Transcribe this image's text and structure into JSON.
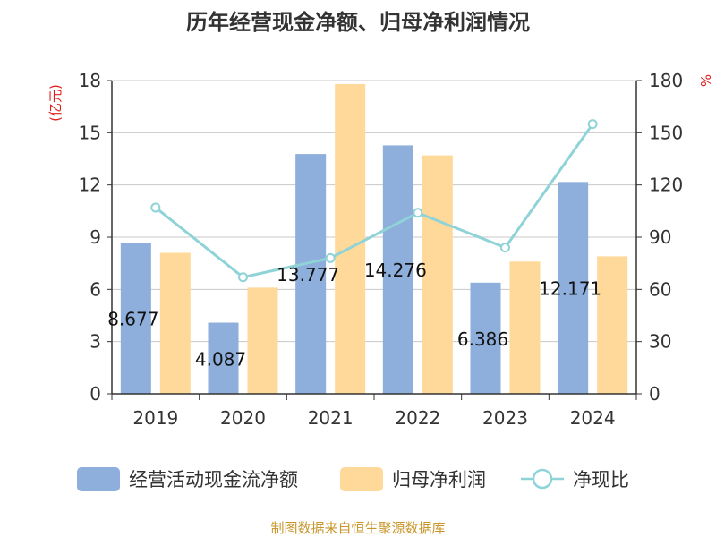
{
  "chart_data": {
    "type": "bar",
    "title": "历年经营现金净额、归母净利润情况",
    "categories": [
      "2019",
      "2020",
      "2021",
      "2022",
      "2023",
      "2024"
    ],
    "series": [
      {
        "name": "经营活动现金流净额",
        "type": "bar",
        "axis": "left",
        "color": "#8eaedb",
        "values": [
          8.677,
          4.087,
          13.777,
          14.276,
          6.386,
          12.171
        ]
      },
      {
        "name": "归母净利润",
        "type": "bar",
        "axis": "left",
        "color": "#ffd99a",
        "values": [
          8.1,
          6.1,
          17.8,
          13.7,
          7.6,
          7.9
        ]
      },
      {
        "name": "净现比",
        "type": "line",
        "axis": "right",
        "color": "#8fd3d8",
        "values": [
          107,
          67,
          78,
          104,
          84,
          155
        ]
      }
    ],
    "data_labels": [
      "8.677",
      "4.087",
      "13.777",
      "14.276",
      "6.386",
      "12.171"
    ],
    "left_axis": {
      "unit": "(亿元)",
      "ylim": [
        0,
        18
      ],
      "ticks": [
        "0",
        "3",
        "6",
        "9",
        "12",
        "15",
        "18"
      ]
    },
    "right_axis": {
      "unit": "%",
      "ylim": [
        0,
        180
      ],
      "ticks": [
        "0",
        "30",
        "60",
        "90",
        "120",
        "150",
        "180"
      ]
    },
    "legend_position": "bottom",
    "grid": true
  },
  "source": "制图数据来自恒生聚源数据库",
  "colors": {
    "title": "#333333",
    "axis_unit": "#e02020",
    "source": "#c8962a",
    "grid": "#c8c8c8",
    "axis": "#333333",
    "tick_text": "#333333"
  }
}
